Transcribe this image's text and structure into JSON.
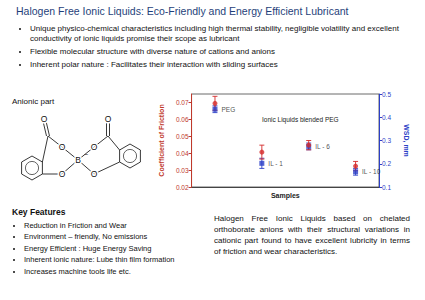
{
  "title": "Halogen Free Ionic Liquids: Eco-Friendly and Energy Efficient Lubricant",
  "bullets": [
    "Unique physico-chemical characteristics including high thermal stability, negligible volatility and excellent conductivity of ionic liquids promise their scope as lubricant",
    "Flexible molecular structure with diverse nature of cations and anions",
    "Inherent polar nature : Facilitates their interaction with sliding surfaces"
  ],
  "anion": {
    "label": "Anionic part",
    "atoms": [
      "O",
      "O",
      "O",
      "O",
      "O",
      "O",
      "B",
      "−"
    ]
  },
  "chart_data": {
    "type": "scatter",
    "x_label": "Samples",
    "y_label": "Coefficient of Friction",
    "y2_label": "WSD, mm",
    "annotation": "Ionic Liquids blended PEG",
    "categories": [
      "PEG",
      "IL - 1",
      "IL - 6",
      "IL - 10"
    ],
    "series": [
      {
        "color": "#2b3fc7",
        "marker": "square",
        "values": [
          0.066,
          0.034,
          0.044,
          0.029
        ],
        "errors": [
          0.002,
          0.003,
          0.002,
          0.002
        ]
      },
      {
        "color": "#d42a2a",
        "marker": "circle",
        "axis": "y2",
        "values": [
          0.46,
          0.25,
          0.28,
          0.19
        ],
        "errors": [
          0.03,
          0.03,
          0.02,
          0.02
        ]
      }
    ],
    "ylim": [
      0.02,
      0.075
    ],
    "yticks": [
      0.02,
      0.03,
      0.04,
      0.05,
      0.06,
      0.07
    ],
    "y2lim": [
      0.1,
      0.5
    ],
    "y2ticks": [
      0.1,
      0.2,
      0.3,
      0.4,
      0.5
    ],
    "grid": false
  },
  "key_features": {
    "heading": "Key Features",
    "items": [
      "Reduction in Friction and Wear",
      "Environment – friendly, No emissions",
      "Energy Efficient : Huge Energy Saving",
      "Inherent ionic nature: Lube thin film formation",
      "Increases machine tools life etc."
    ]
  },
  "summary": "Halogen Free Ionic Liquids based on chelated orthoborate anions with their structural variations in cationic part found to have excellent lubricity in terms of friction and wear characteristics."
}
